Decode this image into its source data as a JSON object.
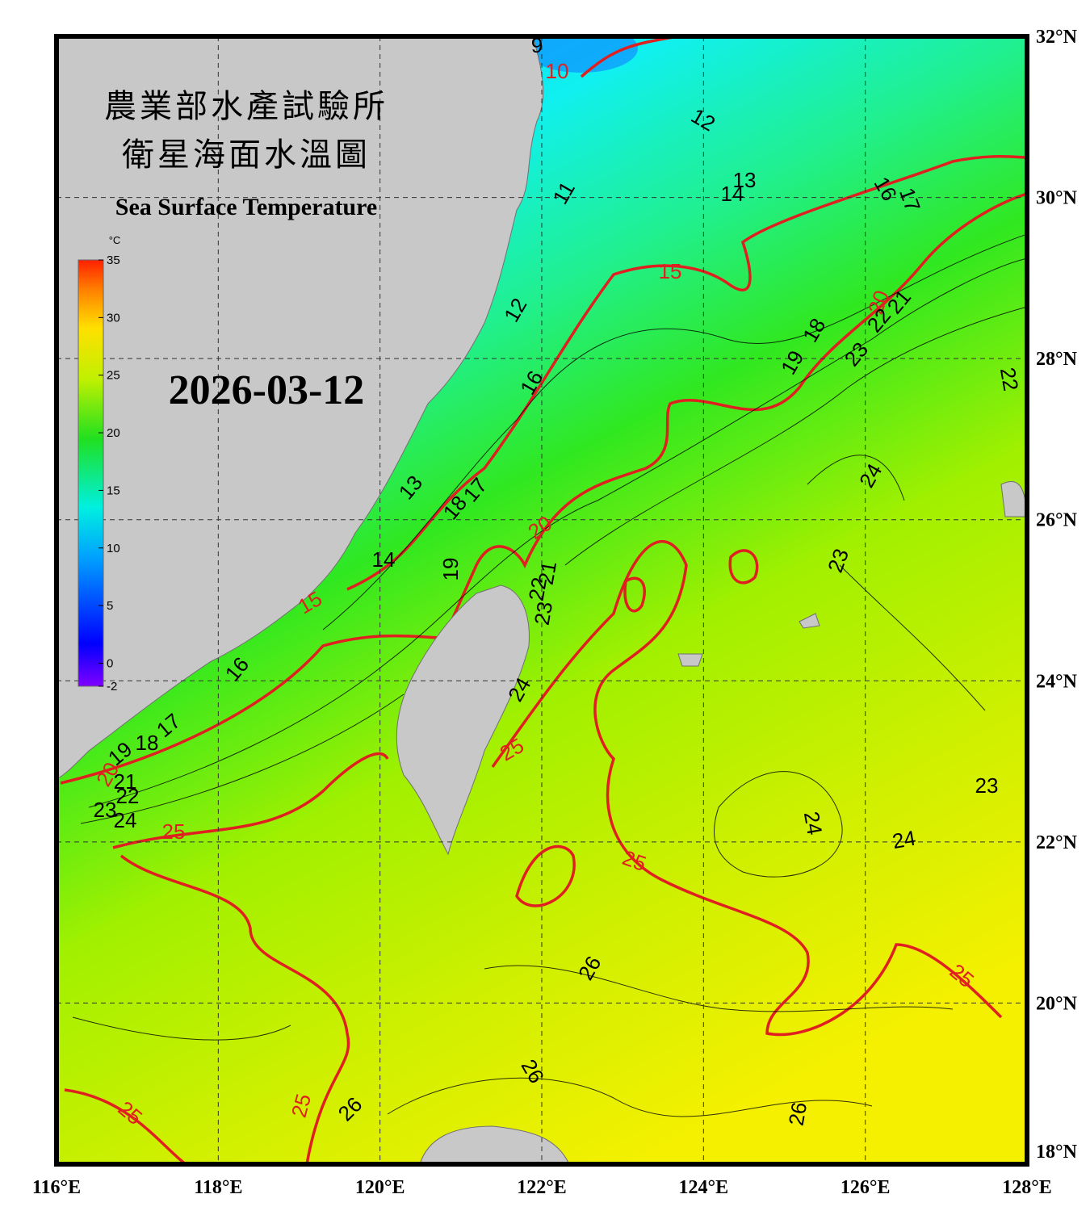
{
  "header": {
    "title_zh_1": "農業部水產試驗所",
    "title_zh_2": "衛星海面水溫圖",
    "title_en": "Sea Surface Temperature"
  },
  "date": "2026-03-12",
  "colorbar": {
    "unit": "°C",
    "lim": [
      -2,
      35
    ],
    "ticks": [
      35,
      30,
      25,
      20,
      15,
      10,
      5,
      0,
      -2
    ]
  },
  "map": {
    "lonlim": [
      116,
      128
    ],
    "latlim": [
      18,
      32
    ],
    "lonticks": [
      {
        "value": 116,
        "label": "116°E"
      },
      {
        "value": 118,
        "label": "118°E"
      },
      {
        "value": 120,
        "label": "120°E"
      },
      {
        "value": 122,
        "label": "122°E"
      },
      {
        "value": 124,
        "label": "124°E"
      },
      {
        "value": 126,
        "label": "126°E"
      },
      {
        "value": 128,
        "label": "128°E"
      }
    ],
    "latticks": [
      {
        "value": 18,
        "label": "18°N"
      },
      {
        "value": 20,
        "label": "20°N"
      },
      {
        "value": 22,
        "label": "22°N"
      },
      {
        "value": 24,
        "label": "24°N"
      },
      {
        "value": 26,
        "label": "26°N"
      },
      {
        "value": 28,
        "label": "28°N"
      },
      {
        "value": 30,
        "label": "30°N"
      },
      {
        "value": 32,
        "label": "32°N"
      }
    ],
    "grid": true
  },
  "contours": {
    "red_labels": [
      10,
      15,
      20,
      20,
      15,
      20,
      25,
      25,
      25,
      25,
      25,
      25
    ],
    "black_labels": [
      9,
      12,
      13,
      14,
      16,
      17,
      11,
      12,
      16,
      18,
      19,
      21,
      22,
      23,
      22,
      13,
      18,
      17,
      19,
      14,
      21,
      22,
      23,
      24,
      16,
      17,
      18,
      19,
      21,
      22,
      23,
      24,
      24,
      23,
      24,
      24,
      23,
      26,
      26,
      26,
      26
    ]
  }
}
